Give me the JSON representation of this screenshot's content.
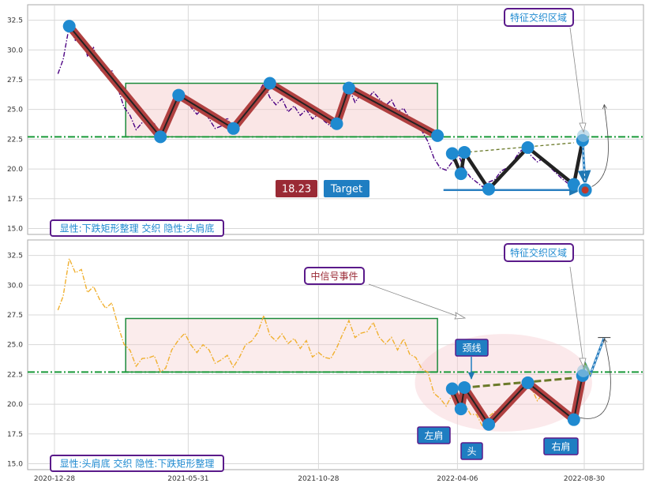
{
  "chart_data": [
    {
      "type": "line",
      "panel": "top",
      "ylim": [
        14.5,
        33.8
      ],
      "yticks": [
        "15.0",
        "17.5",
        "20.0",
        "22.5",
        "25.0",
        "27.5",
        "30.0",
        "32.5"
      ],
      "grid": true,
      "line_color": "#4b0082",
      "series_price": [
        {
          "d": "2021-01-01",
          "v": 28.0
        },
        {
          "d": "2021-01-07",
          "v": 29.2
        },
        {
          "d": "2021-01-14",
          "v": 32.0
        },
        {
          "d": "2021-01-21",
          "v": 30.8
        },
        {
          "d": "2021-01-28",
          "v": 31.2
        },
        {
          "d": "2021-02-04",
          "v": 29.5
        },
        {
          "d": "2021-02-11",
          "v": 30.2
        },
        {
          "d": "2021-02-18",
          "v": 28.4
        },
        {
          "d": "2021-02-25",
          "v": 27.9
        },
        {
          "d": "2021-03-04",
          "v": 28.3
        },
        {
          "d": "2021-03-11",
          "v": 26.8
        },
        {
          "d": "2021-03-18",
          "v": 25.2
        },
        {
          "d": "2021-03-25",
          "v": 24.5
        },
        {
          "d": "2021-04-01",
          "v": 23.3
        },
        {
          "d": "2021-04-08",
          "v": 23.9
        },
        {
          "d": "2021-04-15",
          "v": 24.1
        },
        {
          "d": "2021-04-22",
          "v": 23.8
        },
        {
          "d": "2021-04-29",
          "v": 22.9
        },
        {
          "d": "2021-05-05",
          "v": 23.2
        },
        {
          "d": "2021-05-12",
          "v": 24.5
        },
        {
          "d": "2021-05-20",
          "v": 25.8
        },
        {
          "d": "2021-05-27",
          "v": 26.1
        },
        {
          "d": "2021-06-03",
          "v": 25.2
        },
        {
          "d": "2021-06-10",
          "v": 24.6
        },
        {
          "d": "2021-06-17",
          "v": 25.1
        },
        {
          "d": "2021-06-24",
          "v": 24.2
        },
        {
          "d": "2021-07-01",
          "v": 23.4
        },
        {
          "d": "2021-07-08",
          "v": 23.6
        },
        {
          "d": "2021-07-15",
          "v": 24.3
        },
        {
          "d": "2021-07-22",
          "v": 23.1
        },
        {
          "d": "2021-07-29",
          "v": 24.0
        },
        {
          "d": "2021-08-05",
          "v": 24.9
        },
        {
          "d": "2021-08-12",
          "v": 25.5
        },
        {
          "d": "2021-08-19",
          "v": 26.3
        },
        {
          "d": "2021-08-26",
          "v": 27.2
        },
        {
          "d": "2021-09-02",
          "v": 26.0
        },
        {
          "d": "2021-09-09",
          "v": 25.4
        },
        {
          "d": "2021-09-16",
          "v": 25.9
        },
        {
          "d": "2021-09-23",
          "v": 24.8
        },
        {
          "d": "2021-09-30",
          "v": 25.3
        },
        {
          "d": "2021-10-07",
          "v": 24.5
        },
        {
          "d": "2021-10-14",
          "v": 25.0
        },
        {
          "d": "2021-10-21",
          "v": 24.2
        },
        {
          "d": "2021-10-28",
          "v": 24.6
        },
        {
          "d": "2021-11-04",
          "v": 24.0
        },
        {
          "d": "2021-11-11",
          "v": 23.6
        },
        {
          "d": "2021-11-18",
          "v": 24.4
        },
        {
          "d": "2021-11-25",
          "v": 26.2
        },
        {
          "d": "2021-12-02",
          "v": 26.8
        },
        {
          "d": "2021-12-09",
          "v": 25.6
        },
        {
          "d": "2021-12-16",
          "v": 26.3
        },
        {
          "d": "2021-12-23",
          "v": 25.8
        },
        {
          "d": "2021-12-30",
          "v": 26.5
        },
        {
          "d": "2022-01-06",
          "v": 25.9
        },
        {
          "d": "2022-01-13",
          "v": 25.3
        },
        {
          "d": "2022-01-20",
          "v": 25.8
        },
        {
          "d": "2022-01-27",
          "v": 24.8
        },
        {
          "d": "2022-02-03",
          "v": 25.1
        },
        {
          "d": "2022-02-10",
          "v": 24.2
        },
        {
          "d": "2022-02-17",
          "v": 23.8
        },
        {
          "d": "2022-02-24",
          "v": 23.2
        },
        {
          "d": "2022-03-03",
          "v": 22.3
        },
        {
          "d": "2022-03-10",
          "v": 20.9
        },
        {
          "d": "2022-03-17",
          "v": 20.1
        },
        {
          "d": "2022-03-24",
          "v": 19.9
        },
        {
          "d": "2022-03-31",
          "v": 20.6
        },
        {
          "d": "2022-04-07",
          "v": 21.2
        },
        {
          "d": "2022-04-14",
          "v": 20.0
        },
        {
          "d": "2022-04-21",
          "v": 19.3
        },
        {
          "d": "2022-04-28",
          "v": 18.9
        },
        {
          "d": "2022-05-05",
          "v": 18.5
        },
        {
          "d": "2022-05-12",
          "v": 18.9
        },
        {
          "d": "2022-05-19",
          "v": 19.1
        },
        {
          "d": "2022-05-26",
          "v": 19.8
        },
        {
          "d": "2022-06-02",
          "v": 20.1
        },
        {
          "d": "2022-06-09",
          "v": 20.6
        },
        {
          "d": "2022-06-16",
          "v": 21.4
        },
        {
          "d": "2022-06-23",
          "v": 21.8
        },
        {
          "d": "2022-06-30",
          "v": 21.1
        },
        {
          "d": "2022-07-07",
          "v": 20.6
        },
        {
          "d": "2022-07-14",
          "v": 20.9
        },
        {
          "d": "2022-07-21",
          "v": 20.2
        },
        {
          "d": "2022-07-28",
          "v": 19.7
        },
        {
          "d": "2022-08-04",
          "v": 19.2
        },
        {
          "d": "2022-08-11",
          "v": 18.8
        }
      ],
      "pattern_zigzag": [
        {
          "d": "2021-01-14",
          "v": 32.0
        },
        {
          "d": "2021-04-29",
          "v": 22.7
        },
        {
          "d": "2021-05-20",
          "v": 26.2
        },
        {
          "d": "2021-07-22",
          "v": 23.4
        },
        {
          "d": "2021-09-02",
          "v": 27.2
        },
        {
          "d": "2021-11-18",
          "v": 23.8
        },
        {
          "d": "2021-12-02",
          "v": 26.8
        },
        {
          "d": "2022-03-14",
          "v": 22.8
        }
      ],
      "hs_pivots": [
        {
          "d": "2022-03-31",
          "v": 21.3
        },
        {
          "d": "2022-04-10",
          "v": 19.6
        },
        {
          "d": "2022-04-14",
          "v": 21.4
        },
        {
          "d": "2022-05-12",
          "v": 18.3
        },
        {
          "d": "2022-06-26",
          "v": 21.8
        },
        {
          "d": "2022-08-18",
          "v": 18.7
        },
        {
          "d": "2022-08-28",
          "v": 22.4
        }
      ],
      "rectangle": {
        "d_start": "2021-03-20",
        "d_end": "2022-03-14",
        "y_low": 22.7,
        "y_high": 27.2
      },
      "hline_y": 22.7,
      "neckline": [
        {
          "d": "2022-03-31",
          "v": 21.3
        },
        {
          "d": "2022-08-18",
          "v": 22.2
        }
      ],
      "target_line": [
        {
          "d": "2022-03-10",
          "v": 18.23
        },
        {
          "d": "2022-08-31",
          "v": 18.23
        }
      ],
      "target_point": {
        "d": "2022-08-31",
        "v": 18.23
      },
      "drop_path": [
        {
          "d": "2022-08-28",
          "v": 22.4
        },
        {
          "d": "2022-08-31",
          "v": 18.23
        }
      ],
      "region_marker": {
        "d": "2022-08-29",
        "v": 22.8
      },
      "curve_arrow": {
        "from": {
          "d": "2022-08-31",
          "v": 18.3
        },
        "to": {
          "d": "2022-09-22",
          "v": 25.4
        }
      },
      "annotation_text": "特征交织区域",
      "target_value_text": "18.23",
      "target_label_text": "Target",
      "caption": "显性:下跌矩形整理 交织 隐性:头肩底"
    },
    {
      "type": "line",
      "panel": "bottom",
      "ylim": [
        14.5,
        33.8
      ],
      "yticks": [
        "15.0",
        "17.5",
        "20.0",
        "22.5",
        "25.0",
        "27.5",
        "30.0",
        "32.5"
      ],
      "xtick_dates": [
        "2020-12-28",
        "2021-05-31",
        "2021-10-28",
        "2022-04-06",
        "2022-08-30"
      ],
      "xtick_labels": [
        "2020-12-28",
        "2021-05-31",
        "2021-10-28",
        "2022-04-06",
        "2022-08-30"
      ],
      "grid": true,
      "line_color": "#f0b030",
      "hs_pivots": [
        {
          "d": "2022-03-31",
          "v": 21.3
        },
        {
          "d": "2022-04-10",
          "v": 19.6
        },
        {
          "d": "2022-04-14",
          "v": 21.4
        },
        {
          "d": "2022-05-12",
          "v": 18.3
        },
        {
          "d": "2022-06-26",
          "v": 21.8
        },
        {
          "d": "2022-08-18",
          "v": 18.7
        },
        {
          "d": "2022-08-28",
          "v": 22.4
        }
      ],
      "rectangle": {
        "d_start": "2021-03-20",
        "d_end": "2022-03-14",
        "y_low": 22.7,
        "y_high": 27.2
      },
      "hline_y": 22.7,
      "neckline": [
        {
          "d": "2022-03-31",
          "v": 21.3
        },
        {
          "d": "2022-08-18",
          "v": 22.2
        }
      ],
      "ellipse": {
        "d_center": "2022-05-29",
        "v_center": 21.8,
        "d_left": "2022-02-16",
        "v_top": 25.9
      },
      "breakout": [
        {
          "d": "2022-08-28",
          "v": 22.4
        },
        {
          "d": "2022-08-31",
          "v": 23.4
        },
        {
          "d": "2022-09-06",
          "v": 22.5
        },
        {
          "d": "2022-09-22",
          "v": 25.6
        }
      ],
      "region_marker": {
        "d": "2022-08-29",
        "v": 22.8
      },
      "curve_arrow": {
        "from": {
          "d": "2022-08-18",
          "v": 19.0
        },
        "to": {
          "d": "2022-09-22",
          "v": 25.5
        }
      },
      "event_text": "中信号事件",
      "event_arrow_to": {
        "d": "2022-04-14",
        "v": 27.3
      },
      "neck_text": "颈线",
      "left_shoulder_text": "左肩",
      "head_text": "头",
      "right_shoulder_text": "右肩",
      "annotation_text": "特征交织区域",
      "caption": "显性:头肩底 交织 隐性:下跌矩形整理"
    }
  ]
}
